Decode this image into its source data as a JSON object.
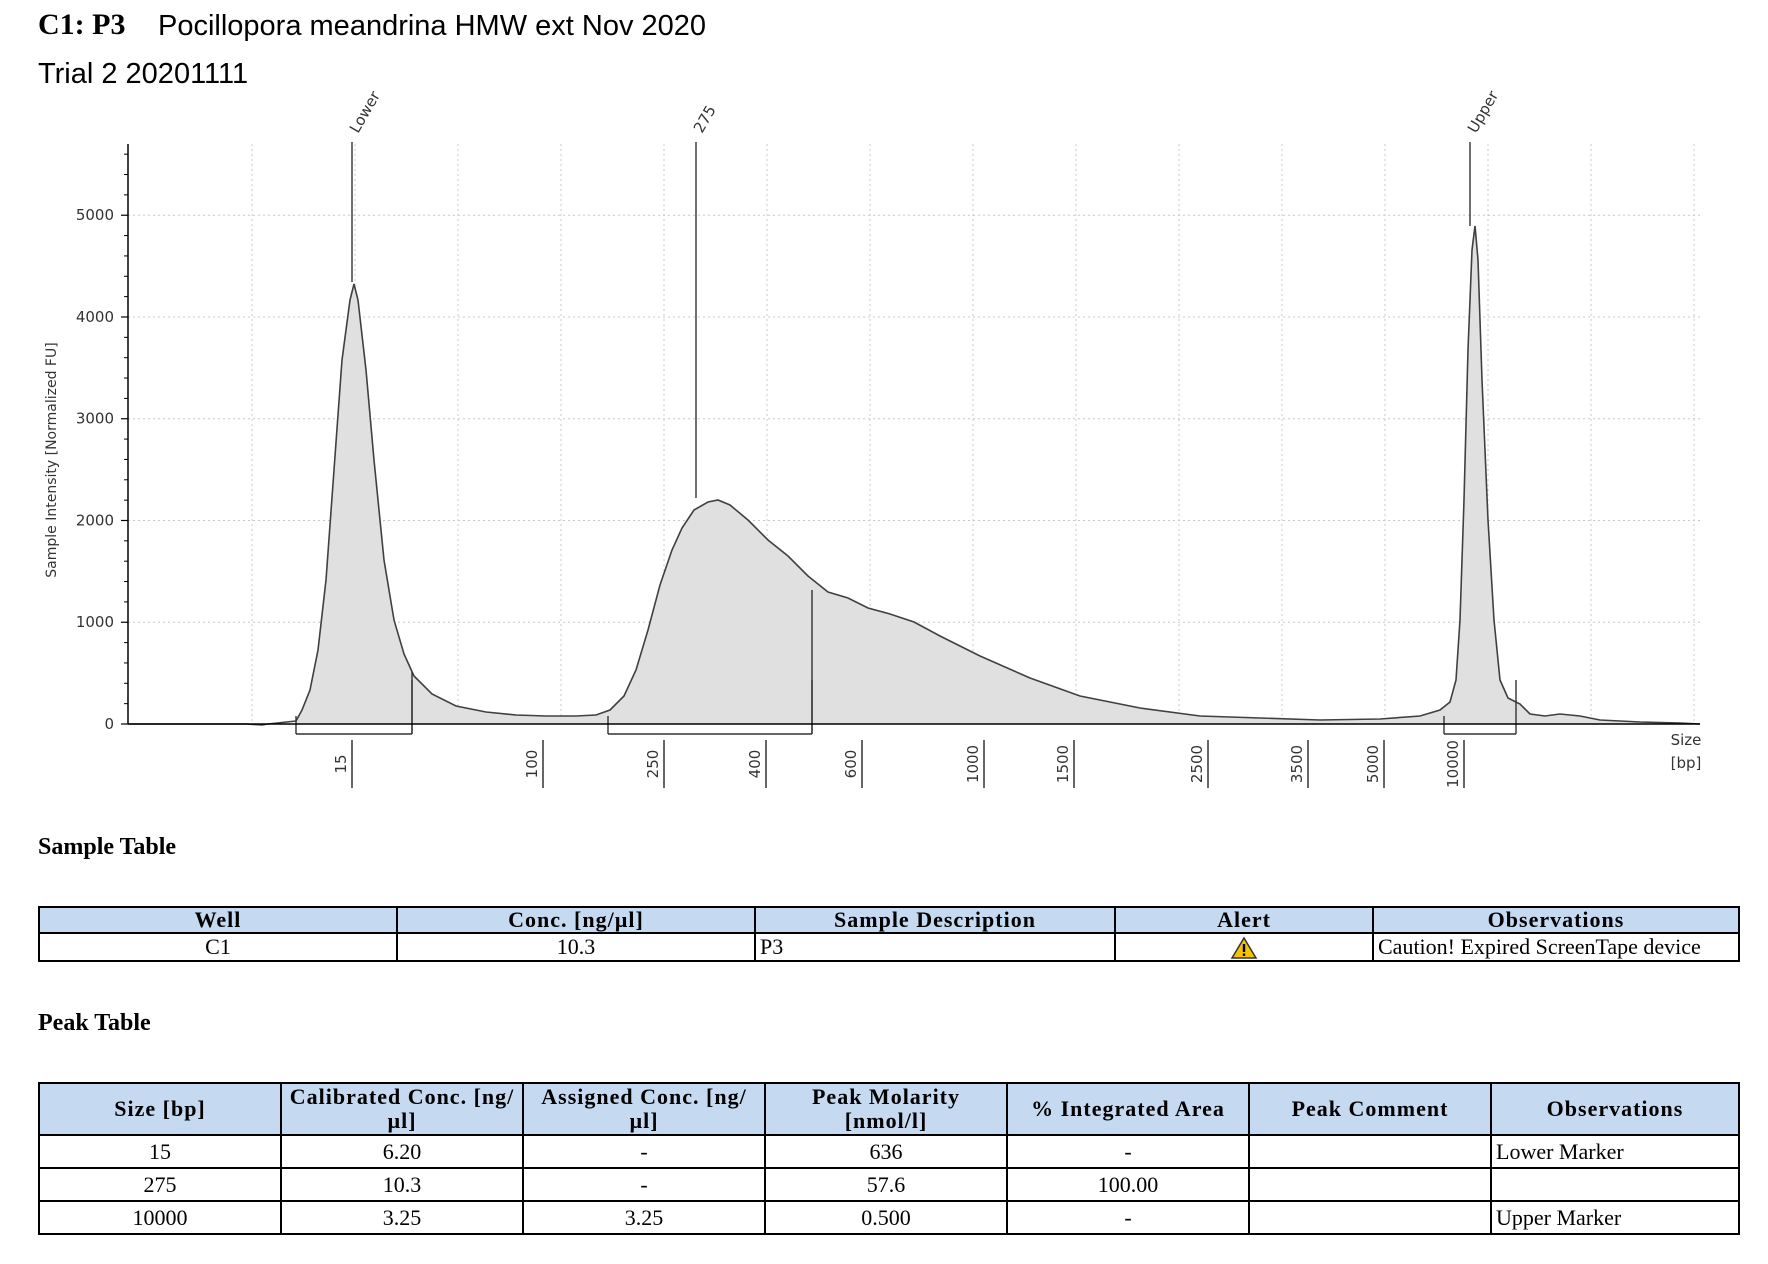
{
  "header": {
    "id": "C1: P3",
    "title": "Pocillopora meandrina HMW ext Nov 2020",
    "subtitle": "Trial 2 20201111"
  },
  "chart_data": {
    "type": "area",
    "xlabel": "Size [bp]",
    "ylabel": "Sample Intensity [Normalized FU]",
    "ylim": [
      0,
      5700
    ],
    "y_ticks": [
      "0",
      "1000",
      "2000",
      "3000",
      "4000",
      "5000"
    ],
    "x_ticks": [
      "15",
      "100",
      "250",
      "400",
      "600",
      "1000",
      "1500",
      "2500",
      "3500",
      "5000",
      "10000"
    ],
    "peak_labels": [
      "Lower",
      "275",
      "Upper"
    ],
    "peaks": [
      {
        "label": "Lower",
        "size_bp": 15,
        "height": 4400
      },
      {
        "label": "275",
        "size_bp": 275,
        "height": 2250
      },
      {
        "label": "Upper",
        "size_bp": 10000,
        "height": 5000
      }
    ],
    "fill_color": "#e0e0e0",
    "line_color": "#404040",
    "grid": true
  },
  "sample_section_title": "Sample Table",
  "sample_table": {
    "headers": [
      "Well",
      "Conc. [ng/µl]",
      "Sample Description",
      "Alert",
      "Observations"
    ],
    "rows": [
      [
        "C1",
        "10.3",
        "P3",
        "warning-icon",
        "Caution! Expired ScreenTape device"
      ]
    ]
  },
  "peak_section_title": "Peak Table",
  "peak_table": {
    "headers": [
      "Size [bp]",
      "Calibrated Conc. [ng/µl]",
      "Assigned Conc. [ng/µl]",
      "Peak Molarity [nmol/l]",
      "% Integrated Area",
      "Peak Comment",
      "Observations"
    ],
    "rows": [
      [
        "15",
        "6.20",
        "-",
        "636",
        "-",
        "",
        "Lower Marker"
      ],
      [
        "275",
        "10.3",
        "-",
        "57.6",
        "100.00",
        "",
        ""
      ],
      [
        "10000",
        "3.25",
        "3.25",
        "0.500",
        "-",
        "",
        "Upper Marker"
      ]
    ]
  },
  "colors": {
    "table_header": "#c5d9f1",
    "warning": "#f5c400"
  }
}
